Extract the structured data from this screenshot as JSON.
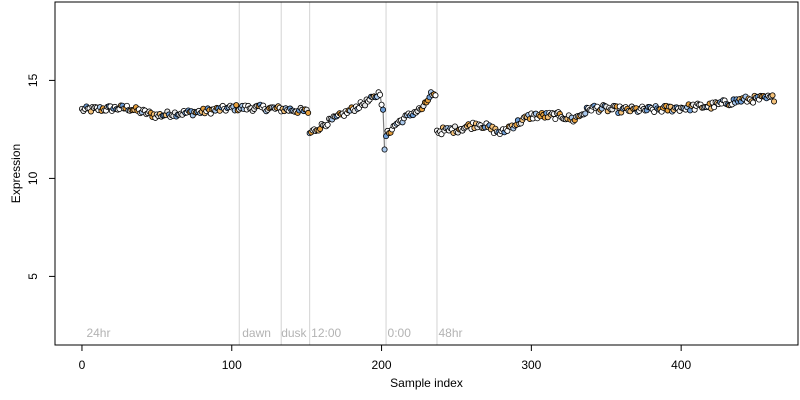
{
  "chart_data": {
    "type": "scatter",
    "title": "",
    "xlabel": "Sample index",
    "ylabel": "Expression",
    "xlim": [
      -18,
      478
    ],
    "ylim": [
      1.5,
      19
    ],
    "x_ticks": [
      0,
      100,
      200,
      300,
      400
    ],
    "y_ticks": [
      5,
      10,
      15
    ],
    "grid": false,
    "legend": "none",
    "phase_lines": [
      105,
      133,
      152,
      203,
      237
    ],
    "phase_labels": [
      {
        "x": 3,
        "text": "24hr"
      },
      {
        "x": 107,
        "text": "dawn"
      },
      {
        "x": 133,
        "text": "dusk"
      },
      {
        "x": 153,
        "text": "12:00"
      },
      {
        "x": 204,
        "text": "0:00"
      },
      {
        "x": 238,
        "text": "48hr"
      }
    ],
    "segments": [
      {
        "start": 0,
        "end": 151,
        "anchors": [
          [
            0,
            13.5
          ],
          [
            30,
            13.6
          ],
          [
            50,
            13.2
          ],
          [
            60,
            13.3
          ],
          [
            80,
            13.4
          ],
          [
            100,
            13.6
          ],
          [
            120,
            13.6
          ],
          [
            140,
            13.5
          ],
          [
            151,
            13.4
          ]
        ],
        "noise": 0.16
      },
      {
        "start": 152,
        "end": 202,
        "anchors": [
          [
            152,
            12.3
          ],
          [
            165,
            12.9
          ],
          [
            180,
            13.5
          ],
          [
            195,
            14.1
          ],
          [
            199,
            14.4
          ],
          [
            201,
            13.4
          ],
          [
            202,
            11.5
          ]
        ],
        "noise": 0.15
      },
      {
        "start": 203,
        "end": 236,
        "anchors": [
          [
            203,
            12.2
          ],
          [
            210,
            12.8
          ],
          [
            220,
            13.3
          ],
          [
            228,
            13.6
          ],
          [
            233,
            14.3
          ],
          [
            236,
            14.1
          ]
        ],
        "noise": 0.15
      },
      {
        "start": 237,
        "end": 462,
        "anchors": [
          [
            237,
            12.4
          ],
          [
            250,
            12.5
          ],
          [
            265,
            12.8
          ],
          [
            280,
            12.3
          ],
          [
            285,
            12.6
          ],
          [
            300,
            13.2
          ],
          [
            320,
            13.2
          ],
          [
            328,
            13.0
          ],
          [
            340,
            13.6
          ],
          [
            360,
            13.5
          ],
          [
            380,
            13.5
          ],
          [
            400,
            13.6
          ],
          [
            420,
            13.7
          ],
          [
            440,
            14.0
          ],
          [
            462,
            14.1
          ]
        ],
        "noise": 0.18
      }
    ],
    "point_fill_palette": [
      "#ffffff",
      "#ffffff",
      "#ffffff",
      "#e8e8e8",
      "#f5c27a",
      "#e69f3c",
      "#a9c8ec",
      "#6f9fd8"
    ],
    "point_stroke": "#000000",
    "line_color": "#808080",
    "phase_line_color": "#d3d3d3",
    "phase_label_color": "#b3b3b3"
  }
}
